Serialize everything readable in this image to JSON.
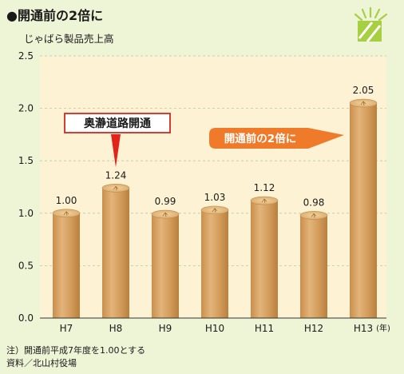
{
  "header": {
    "title": "●開通前の2倍に",
    "subtitle": "じゃばら製品売上高"
  },
  "notes": [
    "注）開通前平成7年度を1.00とする",
    "資料／北山村役場"
  ],
  "colors": {
    "background": "#eef4d6",
    "plot_area": "#fdf3d4",
    "bar": "#d29a59",
    "bar_light": "#e8c492",
    "callout_border": "#d2281e",
    "arrow_red": "#e2231a",
    "arrow_orange": "#ef7b2a",
    "deco_green": "#a7cf42"
  },
  "chart_data": {
    "type": "bar",
    "categories": [
      "H7",
      "H8",
      "H9",
      "H10",
      "H11",
      "H12",
      "H13"
    ],
    "values": [
      1.0,
      1.24,
      0.99,
      1.03,
      1.12,
      0.98,
      2.05
    ],
    "value_labels": [
      "1.00",
      "1.24",
      "0.99",
      "1.03",
      "1.12",
      "0.98",
      "2.05"
    ],
    "xunit": "(年)",
    "ylim": [
      0,
      2.5
    ],
    "yticks": [
      "0.0",
      "0.5",
      "1.0",
      "1.5",
      "2.0",
      "2.5"
    ],
    "grid": true,
    "annotations": [
      {
        "text": "奥瀞道路開通",
        "target_category": "H8"
      },
      {
        "text": "開通前の2倍に",
        "target_category": "H13"
      }
    ]
  }
}
